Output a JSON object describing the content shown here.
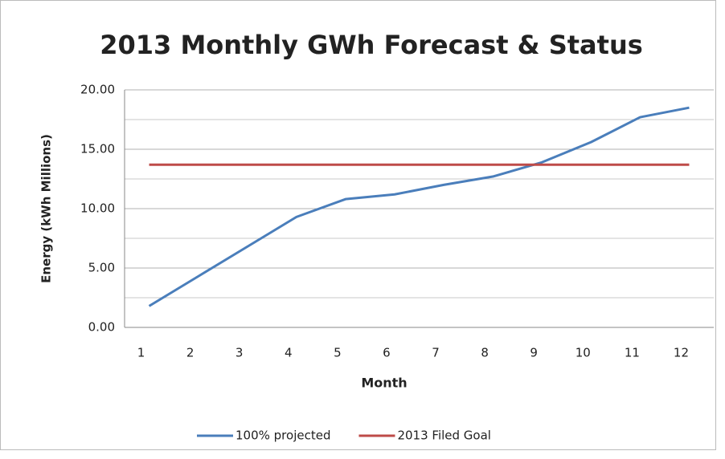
{
  "chart_data": {
    "type": "line",
    "title": "2013 Monthly GWh Forecast & Status",
    "x_label": "Month",
    "y_label": "Energy (kWh Millions)",
    "categories": [
      "1",
      "2",
      "3",
      "4",
      "5",
      "6",
      "7",
      "8",
      "9",
      "10",
      "11",
      "12"
    ],
    "series": [
      {
        "name": "100% projected",
        "color": "#4a7ebb",
        "values": [
          1.8,
          4.3,
          6.8,
          9.3,
          10.8,
          11.2,
          12.0,
          12.7,
          13.9,
          15.6,
          17.7,
          18.5
        ]
      },
      {
        "name": "2013 Filed Goal",
        "color": "#be4b48",
        "values": [
          13.7,
          13.7,
          13.7,
          13.7,
          13.7,
          13.7,
          13.7,
          13.7,
          13.7,
          13.7,
          13.7,
          13.7
        ]
      }
    ],
    "ylim": [
      0,
      20
    ],
    "yticks": [
      {
        "value": 0,
        "label": "0.00"
      },
      {
        "value": 5,
        "label": "5.00"
      },
      {
        "value": 10,
        "label": "10.00"
      },
      {
        "value": 15,
        "label": "15.00"
      },
      {
        "value": 20,
        "label": "20.00"
      }
    ],
    "minor_yticks": [
      2.5,
      7.5,
      12.5,
      17.5
    ],
    "grid": true,
    "legend": "bottom"
  }
}
